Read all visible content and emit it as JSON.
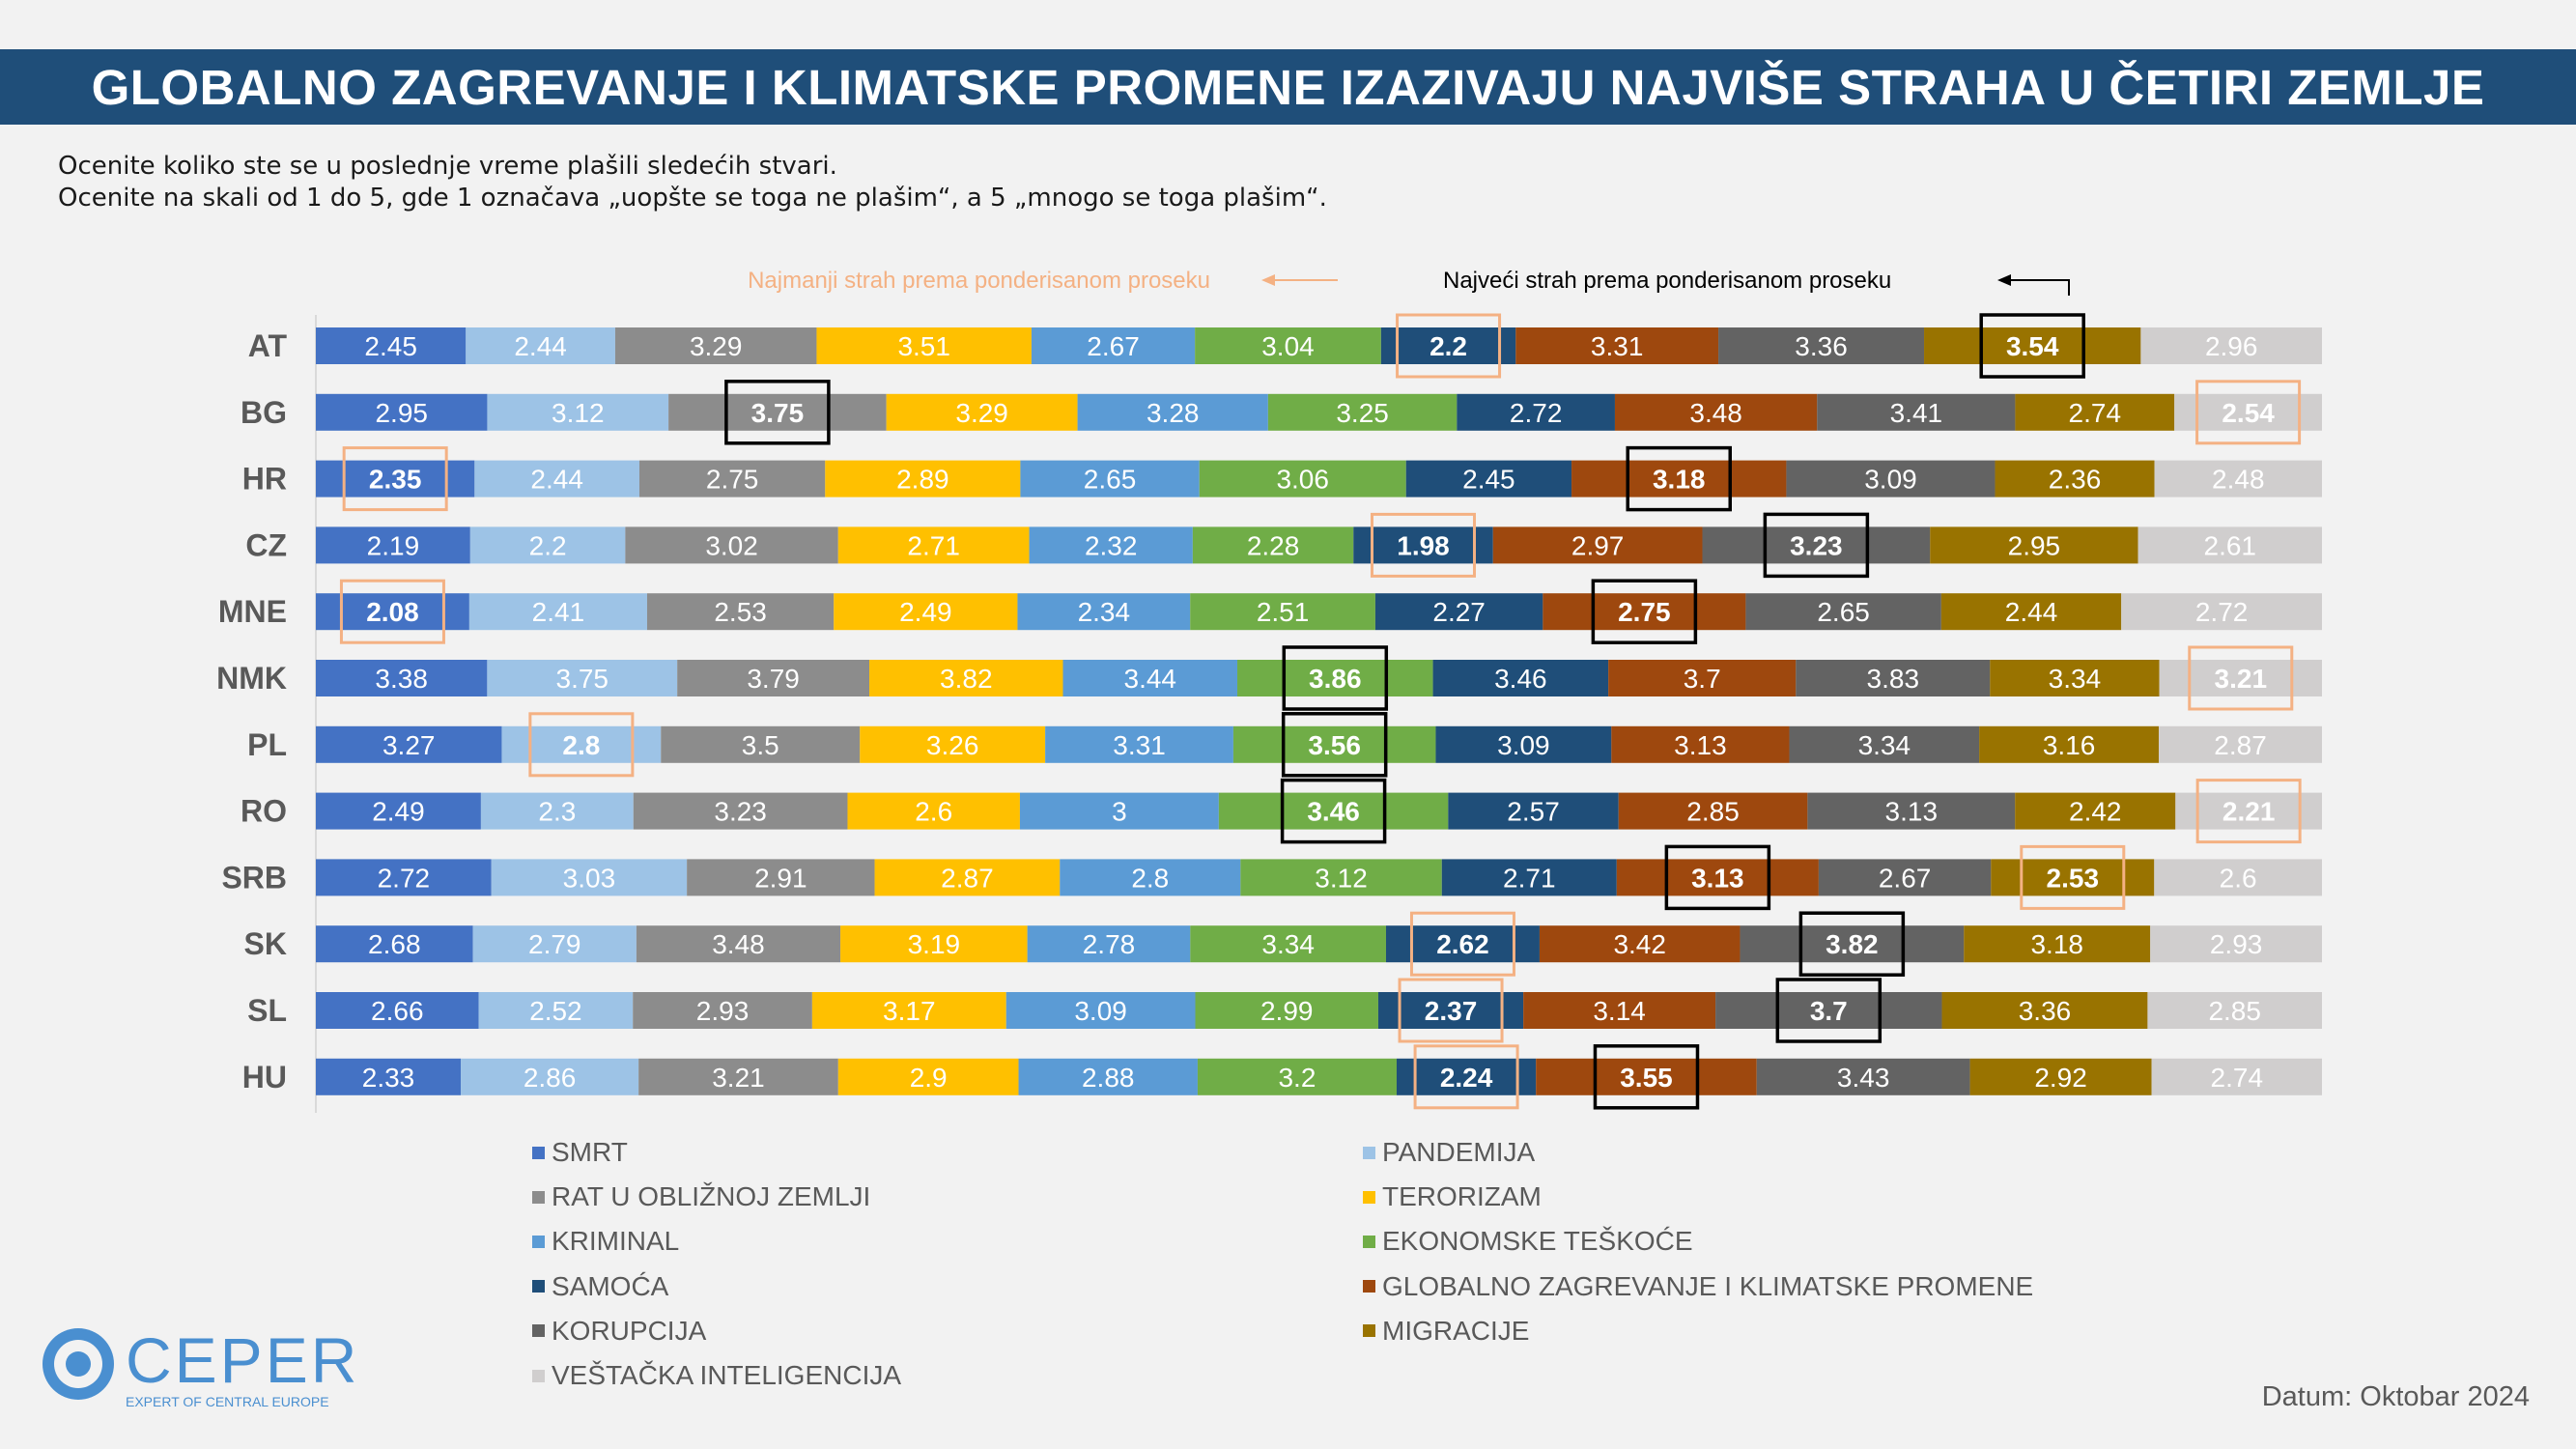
{
  "title": "GLOBALNO ZAGREVANJE I KLIMATSKE PROMENE IZAZIVAJU NAJVIŠE STRAHA U ČETIRI ZEMLJE",
  "subtitle_line1": "Ocenite koliko ste se u poslednje vreme plašili sledećih stvari.",
  "subtitle_line2": "Ocenite na skali od 1 do 5, gde 1 označava „uopšte se toga ne plašim“, a 5 „mnogo se toga plašim“.",
  "date_note": "Datum: Oktobar 2024",
  "logo": {
    "name": "CEPER",
    "tagline": "EXPERT OF CENTRAL EUROPE"
  },
  "colors": {
    "highlight_max": "#000000",
    "highlight_min": "#f4b183",
    "annotation_min_text": "#f4b183",
    "annotation_max_text": "#000000"
  },
  "chart_data": {
    "type": "bar",
    "orientation": "horizontal-stacked",
    "title": "GLOBALNO ZAGREVANJE I KLIMATSKE PROMENE IZAZIVAJU NAJVIŠE STRAHA U ČETIRI ZEMLJE",
    "annotations": {
      "min_label": "Najmanji strah prema ponderisanom proseku",
      "max_label": "Najveći strah prema ponderisanom proseku"
    },
    "legend_placement": "bottom",
    "grid": false,
    "categories": [
      "AT",
      "BG",
      "HR",
      "CZ",
      "MNE",
      "NMK",
      "PL",
      "RO",
      "SRB",
      "SK",
      "SL",
      "HU"
    ],
    "series": [
      {
        "name": "SMRT",
        "color": "#4472c4",
        "values": [
          2.45,
          2.95,
          2.35,
          2.19,
          2.08,
          3.38,
          3.27,
          2.49,
          2.72,
          2.68,
          2.66,
          2.33
        ]
      },
      {
        "name": "PANDEMIJA",
        "color": "#9dc3e6",
        "values": [
          2.44,
          3.12,
          2.44,
          2.2,
          2.41,
          3.75,
          2.8,
          2.3,
          3.03,
          2.79,
          2.52,
          2.86
        ]
      },
      {
        "name": "RAT U OBLIŽNOJ ZEMLJI",
        "color": "#8c8c8c",
        "values": [
          3.29,
          3.75,
          2.75,
          3.02,
          2.53,
          3.79,
          3.5,
          3.23,
          2.91,
          3.48,
          2.93,
          3.21
        ]
      },
      {
        "name": "TERORIZAM",
        "color": "#ffc000",
        "values": [
          3.51,
          3.29,
          2.89,
          2.71,
          2.49,
          3.82,
          3.26,
          2.6,
          2.87,
          3.19,
          3.17,
          2.9
        ]
      },
      {
        "name": "KRIMINAL",
        "color": "#5b9bd5",
        "values": [
          2.67,
          3.28,
          2.65,
          2.32,
          2.34,
          3.44,
          3.31,
          3,
          2.8,
          2.78,
          3.09,
          2.88
        ]
      },
      {
        "name": "EKONOMSKE TEŠKOĆE",
        "color": "#70ad47",
        "values": [
          3.04,
          3.25,
          3.06,
          2.28,
          2.51,
          3.86,
          3.56,
          3.46,
          3.12,
          3.34,
          2.99,
          3.2
        ]
      },
      {
        "name": "SAMOĆA",
        "color": "#1f4e79",
        "values": [
          2.2,
          2.72,
          2.45,
          1.98,
          2.27,
          3.46,
          3.09,
          2.57,
          2.71,
          2.62,
          2.37,
          2.24
        ]
      },
      {
        "name": "GLOBALNO ZAGREVANJE I KLIMATSKE PROMENE",
        "color": "#9e480e",
        "values": [
          3.31,
          3.48,
          3.18,
          2.97,
          2.75,
          3.7,
          3.13,
          2.85,
          3.13,
          3.42,
          3.14,
          3.55
        ]
      },
      {
        "name": "KORUPCIJA",
        "color": "#636363",
        "values": [
          3.36,
          3.41,
          3.09,
          3.23,
          2.65,
          3.83,
          3.34,
          3.13,
          2.67,
          3.82,
          3.7,
          3.43
        ]
      },
      {
        "name": "MIGRACIJE",
        "color": "#997300",
        "values": [
          3.54,
          2.74,
          2.36,
          2.95,
          2.44,
          3.34,
          3.16,
          2.42,
          2.53,
          3.18,
          3.36,
          2.92
        ]
      },
      {
        "name": "VEŠTAČKA INTELIGENCIJA",
        "color": "#d0cece",
        "values": [
          2.96,
          2.54,
          2.48,
          2.61,
          2.72,
          3.21,
          2.87,
          2.21,
          2.6,
          2.93,
          2.85,
          2.74
        ]
      }
    ],
    "highlighted_max": [
      {
        "category": "AT",
        "series": "MIGRACIJE"
      },
      {
        "category": "BG",
        "series": "RAT U OBLIŽNOJ ZEMLJI"
      },
      {
        "category": "HR",
        "series": "GLOBALNO ZAGREVANJE I KLIMATSKE PROMENE"
      },
      {
        "category": "CZ",
        "series": "KORUPCIJA"
      },
      {
        "category": "MNE",
        "series": "GLOBALNO ZAGREVANJE I KLIMATSKE PROMENE"
      },
      {
        "category": "NMK",
        "series": "EKONOMSKE TEŠKOĆE"
      },
      {
        "category": "PL",
        "series": "EKONOMSKE TEŠKOĆE"
      },
      {
        "category": "RO",
        "series": "EKONOMSKE TEŠKOĆE"
      },
      {
        "category": "SRB",
        "series": "GLOBALNO ZAGREVANJE I KLIMATSKE PROMENE"
      },
      {
        "category": "SK",
        "series": "KORUPCIJA"
      },
      {
        "category": "SL",
        "series": "KORUPCIJA"
      },
      {
        "category": "HU",
        "series": "GLOBALNO ZAGREVANJE I KLIMATSKE PROMENE"
      }
    ],
    "highlighted_min": [
      {
        "category": "AT",
        "series": "SAMOĆA"
      },
      {
        "category": "BG",
        "series": "VEŠTAČKA INTELIGENCIJA"
      },
      {
        "category": "HR",
        "series": "SMRT"
      },
      {
        "category": "CZ",
        "series": "SAMOĆA"
      },
      {
        "category": "MNE",
        "series": "SMRT"
      },
      {
        "category": "NMK",
        "series": "VEŠTAČKA INTELIGENCIJA"
      },
      {
        "category": "PL",
        "series": "PANDEMIJA"
      },
      {
        "category": "RO",
        "series": "VEŠTAČKA INTELIGENCIJA"
      },
      {
        "category": "SRB",
        "series": "MIGRACIJE"
      },
      {
        "category": "SK",
        "series": "SAMOĆA"
      },
      {
        "category": "SL",
        "series": "SAMOĆA"
      },
      {
        "category": "HU",
        "series": "SAMOĆA"
      }
    ]
  }
}
